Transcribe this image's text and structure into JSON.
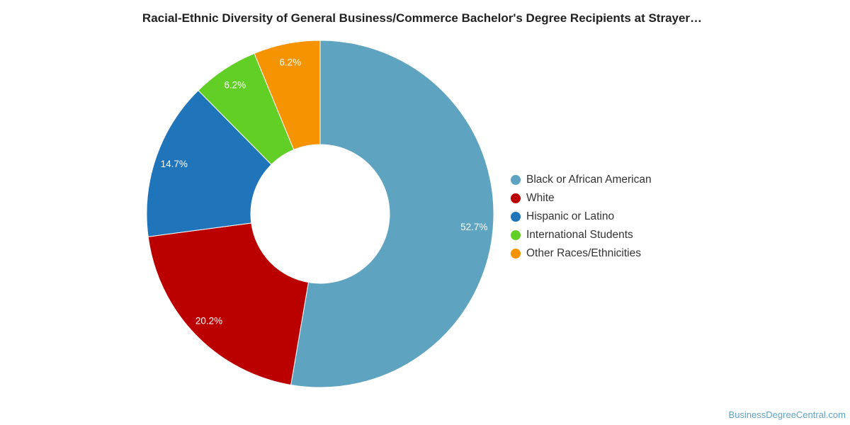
{
  "chart_data": {
    "type": "pie",
    "title": "Racial-Ethnic Diversity of General Business/Commerce Bachelor's Degree Recipients at Strayer…",
    "donut": true,
    "legend_position": "right",
    "slices": [
      {
        "name": "Black or African American",
        "value": 52.7,
        "label": "52.7%",
        "color": "#5ea3c0"
      },
      {
        "name": "White",
        "value": 20.2,
        "label": "20.2%",
        "color": "#bb0000"
      },
      {
        "name": "Hispanic or Latino",
        "value": 14.7,
        "label": "14.7%",
        "color": "#1f74ba"
      },
      {
        "name": "International Students",
        "value": 6.2,
        "label": "6.2%",
        "color": "#62cf26"
      },
      {
        "name": "Other Races/Ethnicities",
        "value": 6.2,
        "label": "6.2%",
        "color": "#f59300"
      }
    ]
  },
  "source": "BusinessDegreeCentral.com"
}
